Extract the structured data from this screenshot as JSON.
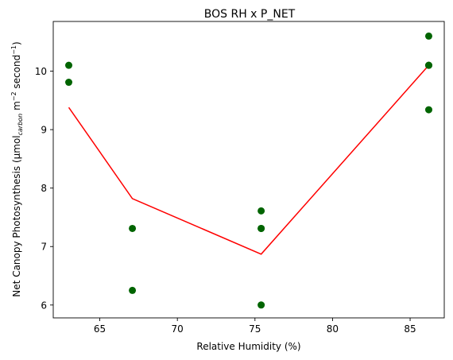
{
  "chart_data": {
    "type": "scatter",
    "title": "BOS RH x P_NET",
    "xlabel": "Relative Humidity (%)",
    "ylabel": {
      "main": "Net Canopy Photosynthesis (μmol",
      "sub": "carbon",
      "unit_m": " m",
      "sup_m": "−2",
      "unit_s": " second",
      "sup_s": "−1",
      "close": ")"
    },
    "xlim": [
      62.0,
      87.2
    ],
    "ylim": [
      5.78,
      10.85
    ],
    "xticks": [
      65,
      70,
      75,
      80,
      85
    ],
    "yticks": [
      6,
      7,
      8,
      9,
      10
    ],
    "grid": false,
    "colors": {
      "points": "#006400",
      "line": "#ff0000"
    },
    "series": [
      {
        "kind": "points",
        "x": [
          63.0,
          63.0,
          67.1,
          67.1,
          75.4,
          75.4,
          75.4,
          75.4,
          86.2,
          86.2,
          86.2,
          86.2
        ],
        "y": [
          10.1,
          9.81,
          7.31,
          6.25,
          7.61,
          7.31,
          7.31,
          6.0,
          10.6,
          10.1,
          10.1,
          9.34
        ]
      },
      {
        "kind": "line",
        "x": [
          63.0,
          67.1,
          75.4,
          86.2
        ],
        "y": [
          9.38,
          7.82,
          6.87,
          10.1
        ]
      }
    ]
  }
}
